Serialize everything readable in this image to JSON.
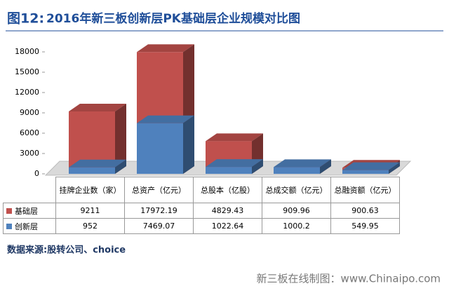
{
  "chart_data": {
    "type": "bar",
    "title_prefix": "图12:",
    "title": "2016年新三板创新层PK基础层企业规模对比图",
    "categories": [
      "挂牌企业数（家）",
      "总资产（亿元）",
      "总股本（亿股）",
      "总成交额（亿元）",
      "总融资额（亿元）"
    ],
    "series": [
      {
        "name": "基础层",
        "color": "#c0504d",
        "values": [
          9211,
          17972.19,
          4829.43,
          909.96,
          900.63
        ]
      },
      {
        "name": "创新层",
        "color": "#4f81bd",
        "values": [
          952,
          7469.07,
          1022.64,
          1000.2,
          549.95
        ]
      }
    ],
    "ylim": [
      0,
      18000
    ],
    "yticks": [
      0,
      3000,
      6000,
      9000,
      12000,
      15000,
      18000
    ],
    "source": "数据来源:股转公司、choice",
    "footer": "新三板在线制图：www.Chinaipo.com"
  }
}
